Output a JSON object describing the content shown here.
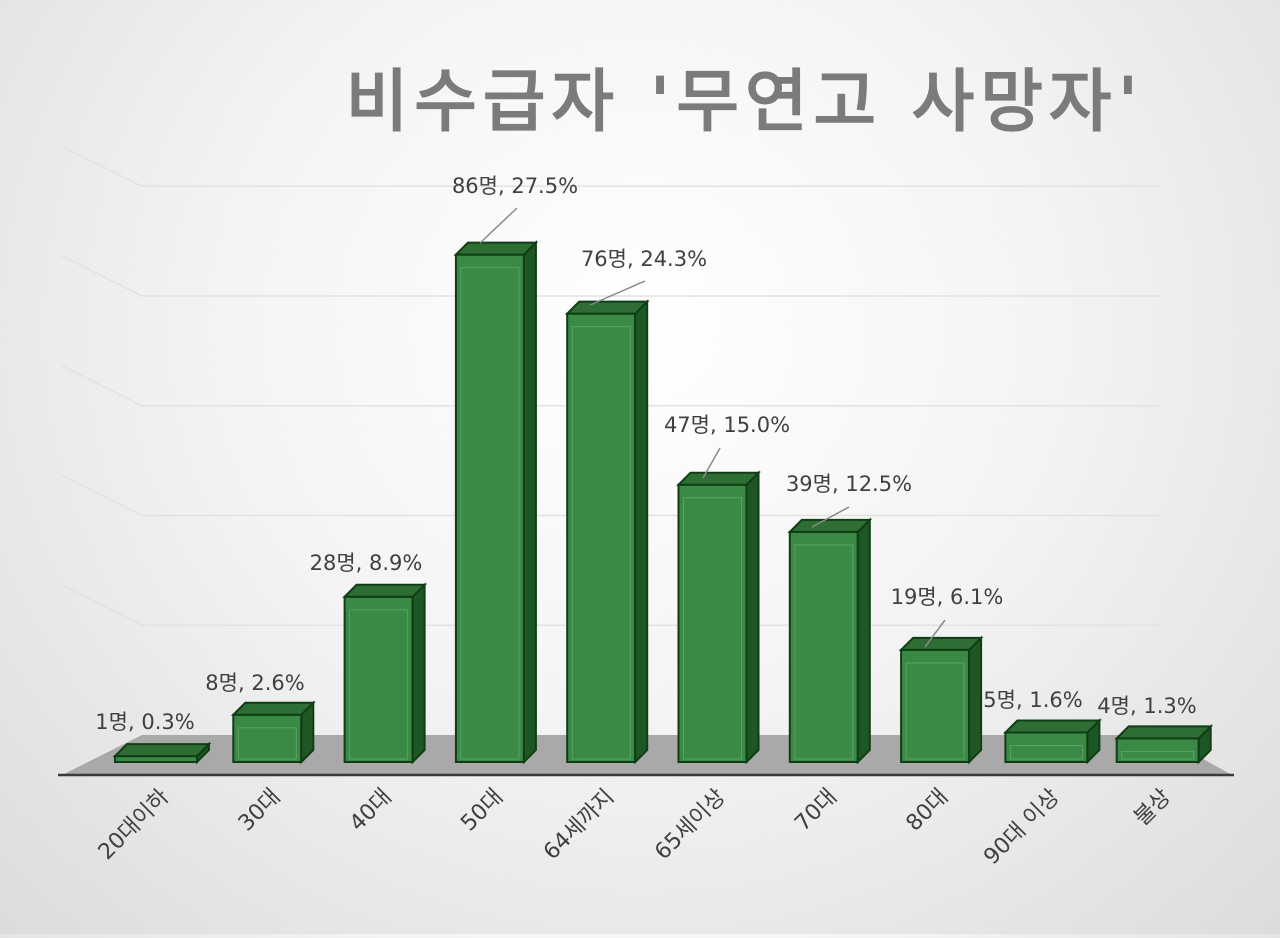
{
  "chart_data": {
    "type": "bar",
    "title": "비수급자 '무연고 사망자'",
    "categories": [
      "20대이하",
      "30대",
      "40대",
      "50대",
      "64세까지",
      "65세이상",
      "70대",
      "80대",
      "90대 이상",
      "불상"
    ],
    "series": [
      {
        "values": [
          1,
          8,
          28,
          86,
          76,
          47,
          39,
          19,
          5,
          4
        ],
        "percents": [
          0.3,
          2.6,
          8.9,
          27.5,
          24.3,
          15.0,
          12.5,
          6.1,
          1.6,
          1.3
        ]
      }
    ],
    "data_labels": [
      "1명, 0.3%",
      "8명, 2.6%",
      "28명, 8.9%",
      "86명, 27.5%",
      "76명, 24.3%",
      "47명, 15.0%",
      "39명, 12.5%",
      "19명, 6.1%",
      "5명, 1.6%",
      "4명, 1.3%"
    ],
    "ylim": [
      0,
      100
    ],
    "grid": true,
    "legend": "none",
    "three_d": true,
    "colors": {
      "bar_front": "#3a8a45",
      "bar_side": "#1f5626",
      "bar_top": "#2e6e35",
      "bar_edge": "#0f3d14",
      "floor": "#a9a9a9",
      "title": "#7b7b7b",
      "label": "#404040",
      "gridline": "#e2e2e2"
    }
  }
}
